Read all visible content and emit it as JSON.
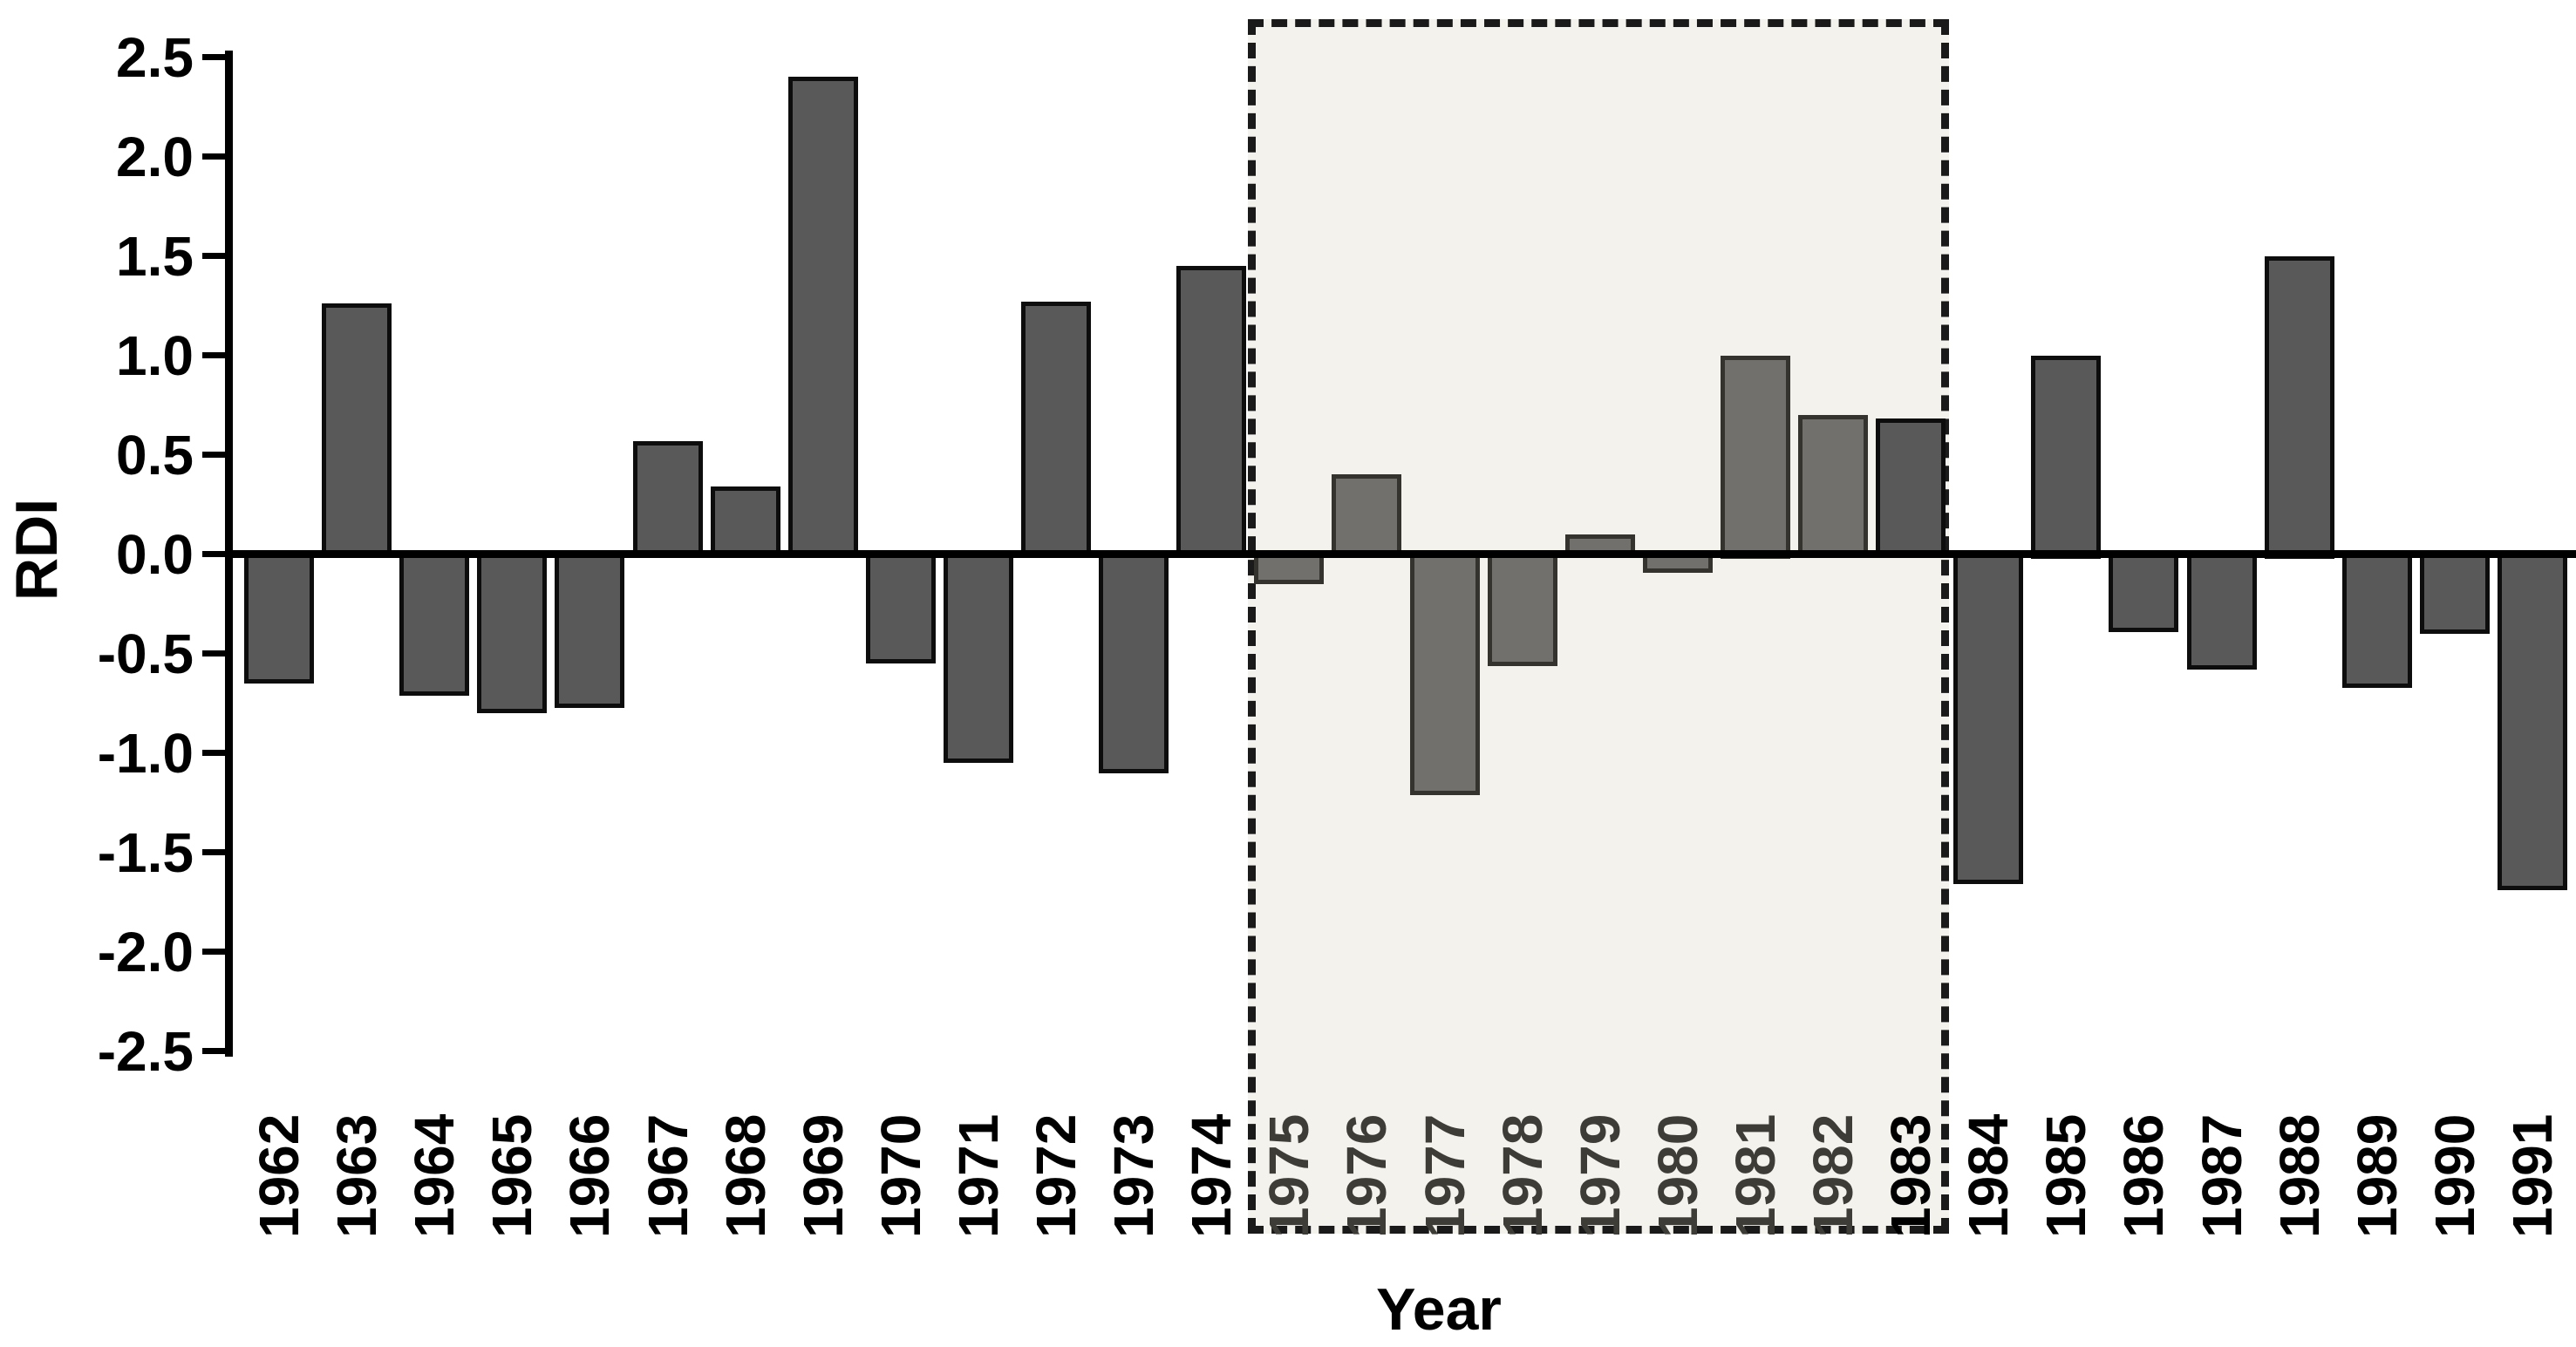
{
  "chart_data": {
    "type": "bar",
    "title": "",
    "xlabel": "Year",
    "ylabel": "RDI",
    "categories": [
      "1962",
      "1963",
      "1964",
      "1965",
      "1966",
      "1967",
      "1968",
      "1969",
      "1970",
      "1971",
      "1972",
      "1973",
      "1974",
      "1975",
      "1976",
      "1977",
      "1978",
      "1979",
      "1980",
      "1981",
      "1982",
      "1983",
      "1984",
      "1985",
      "1986",
      "1987",
      "1988",
      "1989",
      "1990",
      "1991"
    ],
    "values": [
      -0.65,
      1.26,
      -0.71,
      -0.8,
      -0.77,
      0.57,
      0.34,
      2.4,
      -0.55,
      -1.05,
      1.27,
      -1.1,
      1.45,
      -0.15,
      0.4,
      -1.21,
      -0.56,
      0.1,
      -0.09,
      1.0,
      0.7,
      0.68,
      -1.66,
      1.0,
      -0.39,
      -0.58,
      1.5,
      -0.67,
      -0.4,
      -1.69
    ],
    "ylim": [
      -2.5,
      2.5
    ],
    "y_ticks": [
      "2.5",
      "2.0",
      "1.5",
      "1.0",
      "0.5",
      "0.0",
      "-0.5",
      "-1.0",
      "-1.5",
      "-2.0",
      "-2.5"
    ],
    "grid": "off",
    "legend": "none",
    "highlight": {
      "from_year": "1975",
      "to_year": "1982",
      "style": "dashed-box"
    },
    "colors": {
      "bar_fill": "#595959",
      "bar_border": "#0d0d0d",
      "highlight_bar_fill": "#71706c",
      "highlight_bar_border": "#34332e",
      "highlight_box_fill": "#f4f2ec",
      "highlight_box_border": "#1a1a1a",
      "axis": "#000000"
    }
  }
}
